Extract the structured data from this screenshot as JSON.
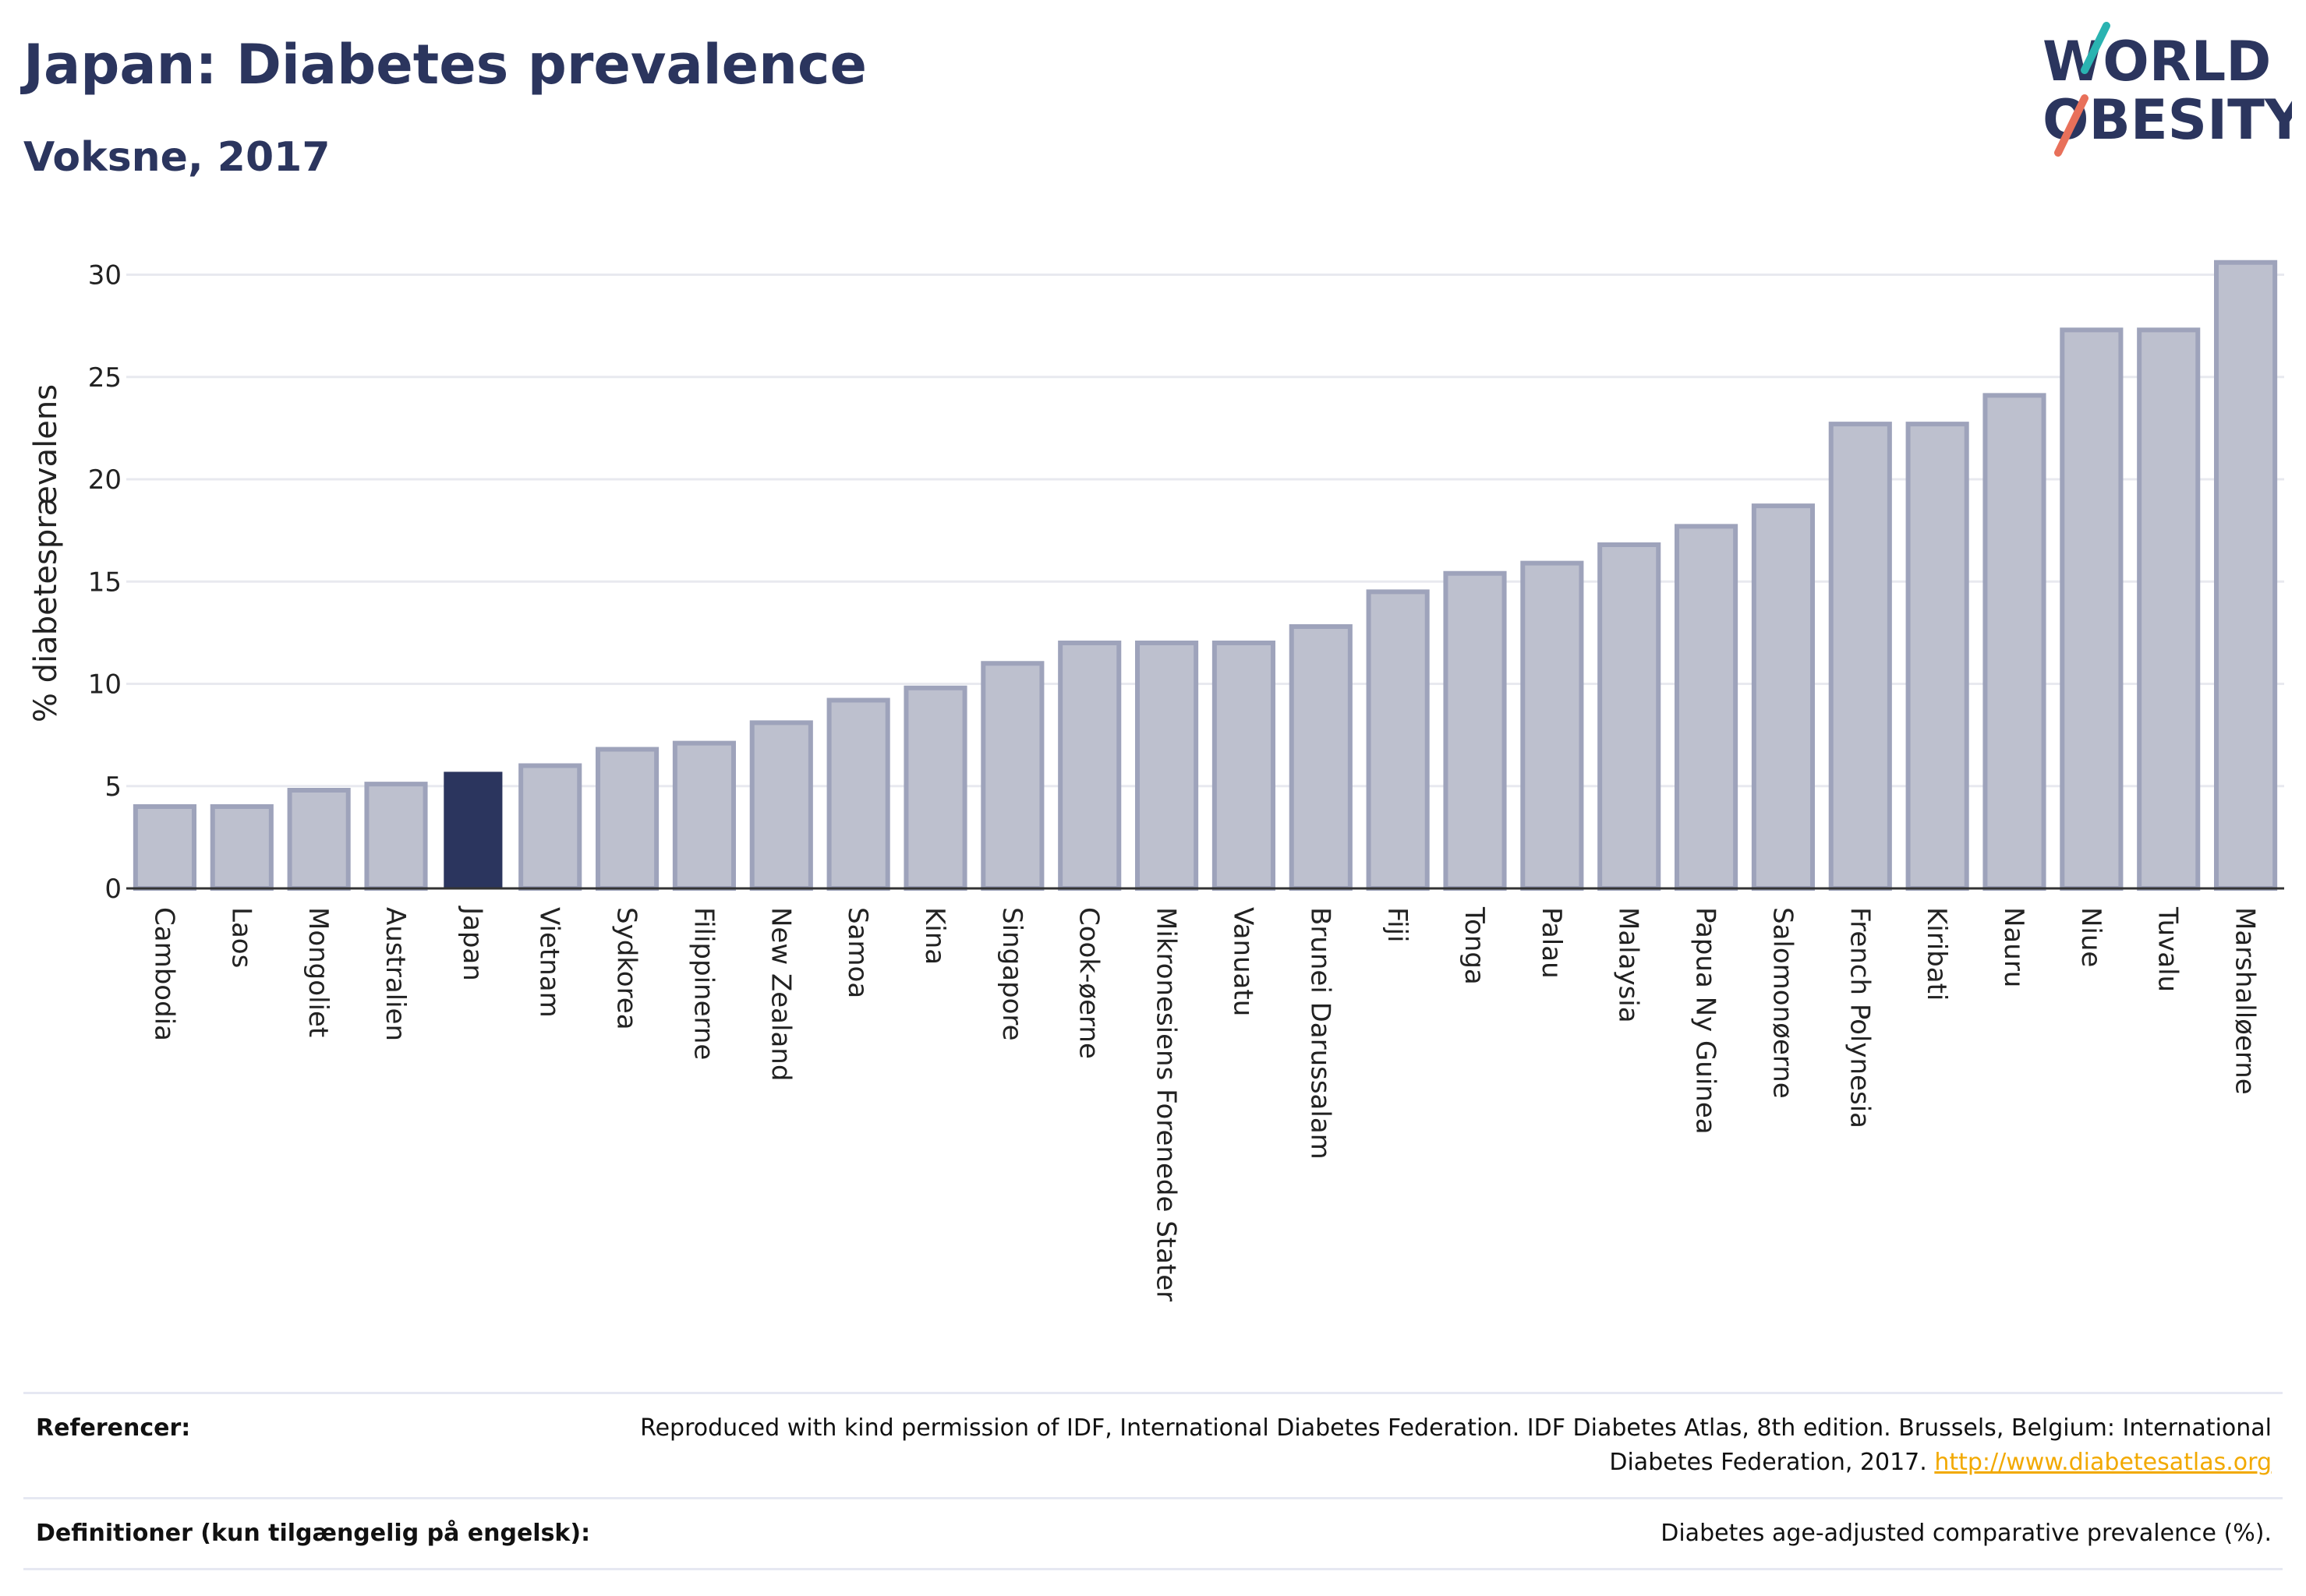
{
  "header": {
    "title": "Japan: Diabetes prevalence",
    "subtitle": "Voksne, 2017"
  },
  "logo": {
    "line1": "WORLD",
    "line2": "OBESITY",
    "colors": {
      "text": "#2b355e",
      "slash_top": "#2ab3b1",
      "slash_bottom": "#e8705a"
    }
  },
  "chart_data": {
    "type": "bar",
    "title": "Japan: Diabetes prevalence",
    "subtitle": "Voksne, 2017",
    "ylabel": "% diabetesprævalens",
    "xlabel": "",
    "ylim": [
      0,
      32
    ],
    "yticks": [
      0,
      5,
      10,
      15,
      20,
      25,
      30
    ],
    "grid": true,
    "highlight": "Japan",
    "categories": [
      "Cambodia",
      "Laos",
      "Mongoliet",
      "Australien",
      "Japan",
      "Vietnam",
      "Sydkorea",
      "Filippinerne",
      "New Zealand",
      "Samoa",
      "Kina",
      "Singapore",
      "Cook-øerne",
      "Mikronesiens Forenede Stater",
      "Vanuatu",
      "Brunei Darussalam",
      "Fiji",
      "Tonga",
      "Palau",
      "Malaysia",
      "Papua Ny Guinea",
      "Salomonøerne",
      "French Polynesia",
      "Kiribati",
      "Nauru",
      "Niue",
      "Tuvalu",
      "Marshalløerne"
    ],
    "values": [
      4.0,
      4.0,
      4.8,
      5.1,
      5.7,
      6.0,
      6.8,
      7.1,
      8.1,
      9.2,
      9.8,
      11.0,
      12.0,
      12.0,
      12.0,
      12.8,
      14.5,
      15.4,
      15.9,
      16.8,
      17.7,
      18.7,
      22.7,
      22.7,
      24.1,
      27.3,
      27.3,
      30.6
    ],
    "colors": {
      "bar": "#bdc0ce",
      "bar_border": "#9ea3bb",
      "highlight": "#2b355e",
      "grid": "#e8e9ef",
      "axis": "#333333"
    }
  },
  "footer": {
    "references_label": "Referencer:",
    "references_text": "Reproduced with kind permission of IDF, International Diabetes Federation. IDF Diabetes Atlas, 8th edition. Brussels, Belgium: International Diabetes Federation, 2017.",
    "references_link": "http://www.diabetesatlas.org",
    "definitions_label": "Definitioner (kun tilgængelig på engelsk):",
    "definitions_text": "Diabetes age-adjusted comparative prevalence (%)."
  }
}
